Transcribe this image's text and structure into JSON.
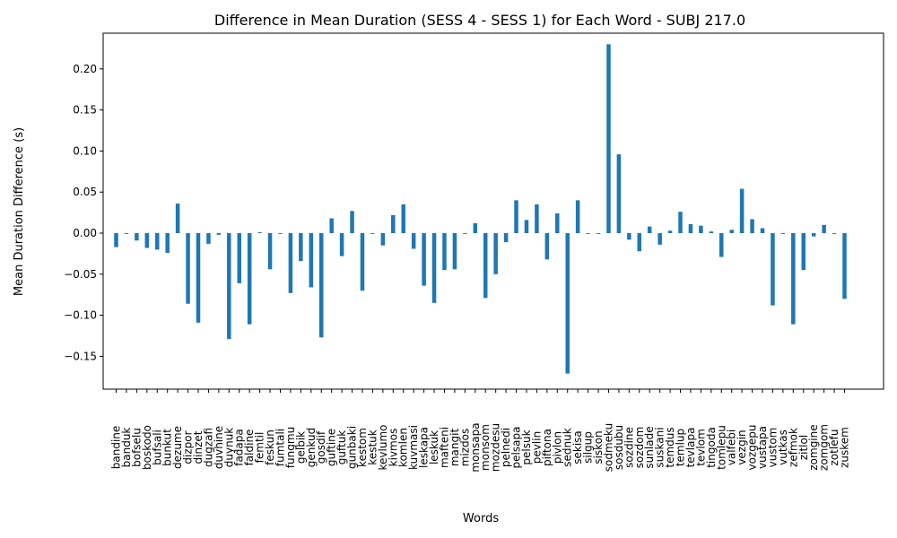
{
  "chart_data": {
    "type": "bar",
    "title": "Difference in Mean Duration (SESS 4 - SESS 1) for Each Word - SUBJ 217.0",
    "xlabel": "Words",
    "ylabel": "Mean Duration Difference (s)",
    "ylim": [
      -0.19,
      0.2435
    ],
    "yticks": [
      "−0.15",
      "−0.10",
      "−0.05",
      "0.00",
      "0.05",
      "0.10",
      "0.15",
      "0.20"
    ],
    "ytick_values": [
      -0.15,
      -0.1,
      -0.05,
      0.0,
      0.05,
      0.1,
      0.15,
      0.2
    ],
    "grid": false,
    "color": "#1f77b4",
    "categories": [
      "bandine",
      "banduk",
      "bofselu",
      "boskodo",
      "bufsali",
      "bunkut",
      "dezume",
      "dizpor",
      "dinzet",
      "dugzafi",
      "duvhine",
      "duynuk",
      "fadapa",
      "faldine",
      "femtil",
      "feskun",
      "fumtali",
      "fungmu",
      "gelbik",
      "genkud",
      "gosdif",
      "guftine",
      "guftuk",
      "gunbaki",
      "kestom",
      "kestuk",
      "kevlumo",
      "kivmos",
      "komlen",
      "kuvmasi",
      "leskapa",
      "leskuk",
      "mafteni",
      "mangit",
      "mizdos",
      "monsapa",
      "monsom",
      "mozdesu",
      "pelnedi",
      "pelsapa",
      "pelsuk",
      "pevlin",
      "piftona",
      "pivlon",
      "sednuk",
      "sekisa",
      "silgup",
      "siskon",
      "sodmeku",
      "sosdubu",
      "sozdine",
      "sozdom",
      "sunlade",
      "suskani",
      "temdus",
      "temlup",
      "tevlapa",
      "tevlom",
      "tingoda",
      "tomlepu",
      "valfebi",
      "vezgin",
      "vozgepu",
      "vustapa",
      "vustom",
      "vutkas",
      "zefmok",
      "zitlol",
      "zomgine",
      "zomgom",
      "zotlefu",
      "zuskem"
    ],
    "values": [
      -0.017,
      -0.001,
      -0.009,
      -0.018,
      -0.02,
      -0.024,
      0.036,
      -0.086,
      -0.109,
      -0.013,
      -0.002,
      -0.129,
      -0.061,
      -0.111,
      0.001,
      -0.044,
      -0.001,
      -0.073,
      -0.034,
      -0.066,
      -0.127,
      0.018,
      -0.028,
      0.027,
      -0.07,
      -0.001,
      -0.015,
      0.022,
      0.035,
      -0.019,
      -0.064,
      -0.085,
      -0.045,
      -0.044,
      -0.001,
      0.012,
      -0.079,
      -0.05,
      -0.011,
      0.04,
      0.016,
      0.035,
      -0.032,
      0.024,
      -0.171,
      0.04,
      -0.001,
      -0.001,
      0.23,
      0.096,
      -0.008,
      -0.022,
      0.008,
      -0.014,
      0.003,
      0.026,
      0.011,
      0.009,
      0.002,
      -0.029,
      0.004,
      0.054,
      0.017,
      0.006,
      -0.088,
      -0.001,
      -0.111,
      -0.045,
      -0.004,
      0.01,
      -0.001,
      -0.08
    ]
  }
}
